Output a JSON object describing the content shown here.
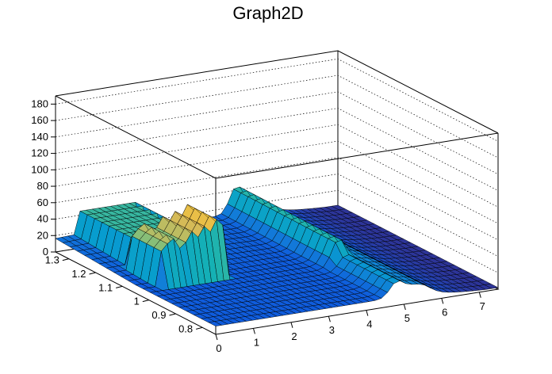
{
  "chart_data": {
    "type": "surface",
    "title": "Graph2D",
    "xlabel": "",
    "ylabel": "",
    "zlabel": "",
    "xlim": [
      0,
      7.5
    ],
    "ylim": [
      0.75,
      1.35
    ],
    "zlim": [
      0,
      190
    ],
    "x_ticks": [
      "0",
      "1",
      "2",
      "3",
      "4",
      "5",
      "6",
      "7"
    ],
    "y_ticks": [
      "0.8",
      "0.9",
      "1",
      "1.1",
      "1.2",
      "1.3"
    ],
    "z_ticks": [
      "0",
      "20",
      "40",
      "60",
      "80",
      "100",
      "120",
      "140",
      "160",
      "180"
    ],
    "grid": true,
    "palette": "kBird (blue-green-yellow)",
    "features": {
      "plateau": {
        "x_range": [
          0.5,
          2.2
        ],
        "y_range": [
          1.0,
          1.35
        ],
        "height": 45,
        "description": "flat-topped block rising from the front plane"
      },
      "spikes": [
        {
          "x": 0.5,
          "z": 52
        },
        {
          "x": 0.7,
          "z": 60
        },
        {
          "x": 0.85,
          "z": 65
        },
        {
          "x": 1.0,
          "z": 52
        },
        {
          "x": 1.15,
          "z": 58
        },
        {
          "x": 1.3,
          "z": 70
        },
        {
          "x": 1.45,
          "z": 62
        },
        {
          "x": 1.6,
          "z": 74
        },
        {
          "x": 1.75,
          "z": 66
        },
        {
          "x": 1.9,
          "z": 80
        },
        {
          "x": 2.05,
          "z": 72
        },
        {
          "x": 2.2,
          "z": 84
        }
      ],
      "ridge": {
        "x": 4.8,
        "y_range": [
          0.8,
          1.35
        ],
        "height": 30
      },
      "baseline_level": 10
    },
    "colors": {
      "low": "#352a87",
      "mid": "#21a5c4",
      "high": "#f9fb0e"
    }
  }
}
